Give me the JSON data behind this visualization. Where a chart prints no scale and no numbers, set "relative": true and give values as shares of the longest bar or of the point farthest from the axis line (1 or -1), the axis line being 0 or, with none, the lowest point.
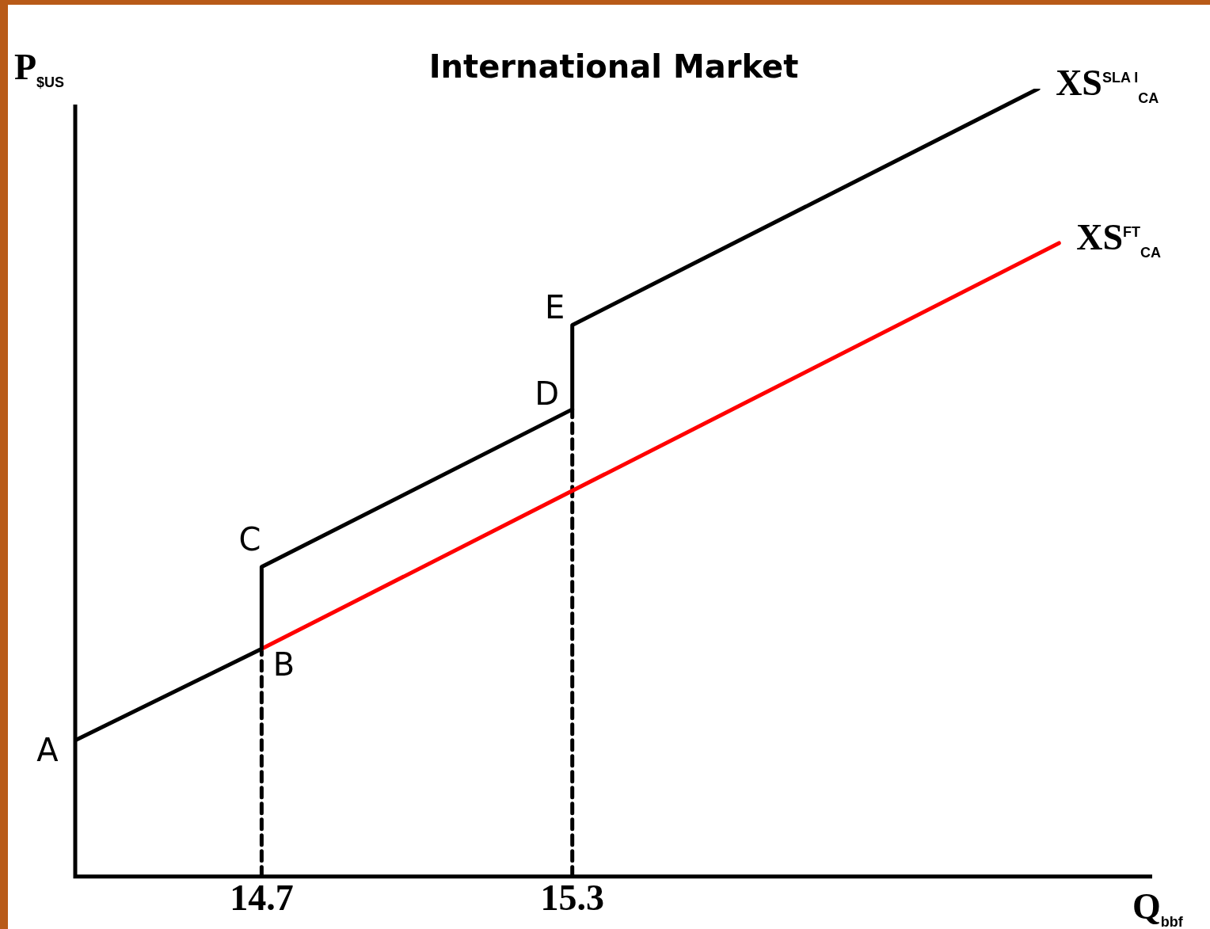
{
  "chart_data": {
    "type": "line",
    "title": "International Market",
    "xlabel": "Q$_{bbf}$",
    "ylabel": "P$_{$US}$",
    "relative": true,
    "xlim": [
      14.34,
      16.42
    ],
    "xticks": [
      14.7,
      15.3
    ],
    "tick_labels": "x",
    "grid": false,
    "legend": false,
    "marker": "none",
    "series": [
      {
        "name": "XS$^{SLA I}$$_{CA}$",
        "color": "#000000",
        "x": [
          14.34,
          14.7,
          14.7,
          15.3,
          15.3,
          16.2
        ],
        "values": [
          0.173,
          0.289,
          0.393,
          0.593,
          0.7,
          1
        ]
      },
      {
        "name": "XS$^{FT}$$_{CA}$",
        "color": "#ff0000",
        "x": [
          14.7,
          16.24
        ],
        "values": [
          0.289,
          0.804
        ]
      },
      {
        "color": "#000000",
        "line_style": "dashed",
        "x": [
          14.7,
          14.7
        ],
        "values": [
          0,
          0.289
        ]
      },
      {
        "color": "#000000",
        "line_style": "dashed",
        "x": [
          15.3,
          15.3
        ],
        "values": [
          0,
          0.593
        ]
      }
    ],
    "annotations": [
      {
        "text": "A",
        "x": 14.34,
        "y": 0.173
      },
      {
        "text": "B",
        "x": 14.7,
        "y": 0.289
      },
      {
        "text": "C",
        "x": 14.7,
        "y": 0.393
      },
      {
        "text": "D",
        "x": 15.3,
        "y": 0.593
      },
      {
        "text": "E",
        "x": 15.3,
        "y": 0.7
      }
    ]
  }
}
